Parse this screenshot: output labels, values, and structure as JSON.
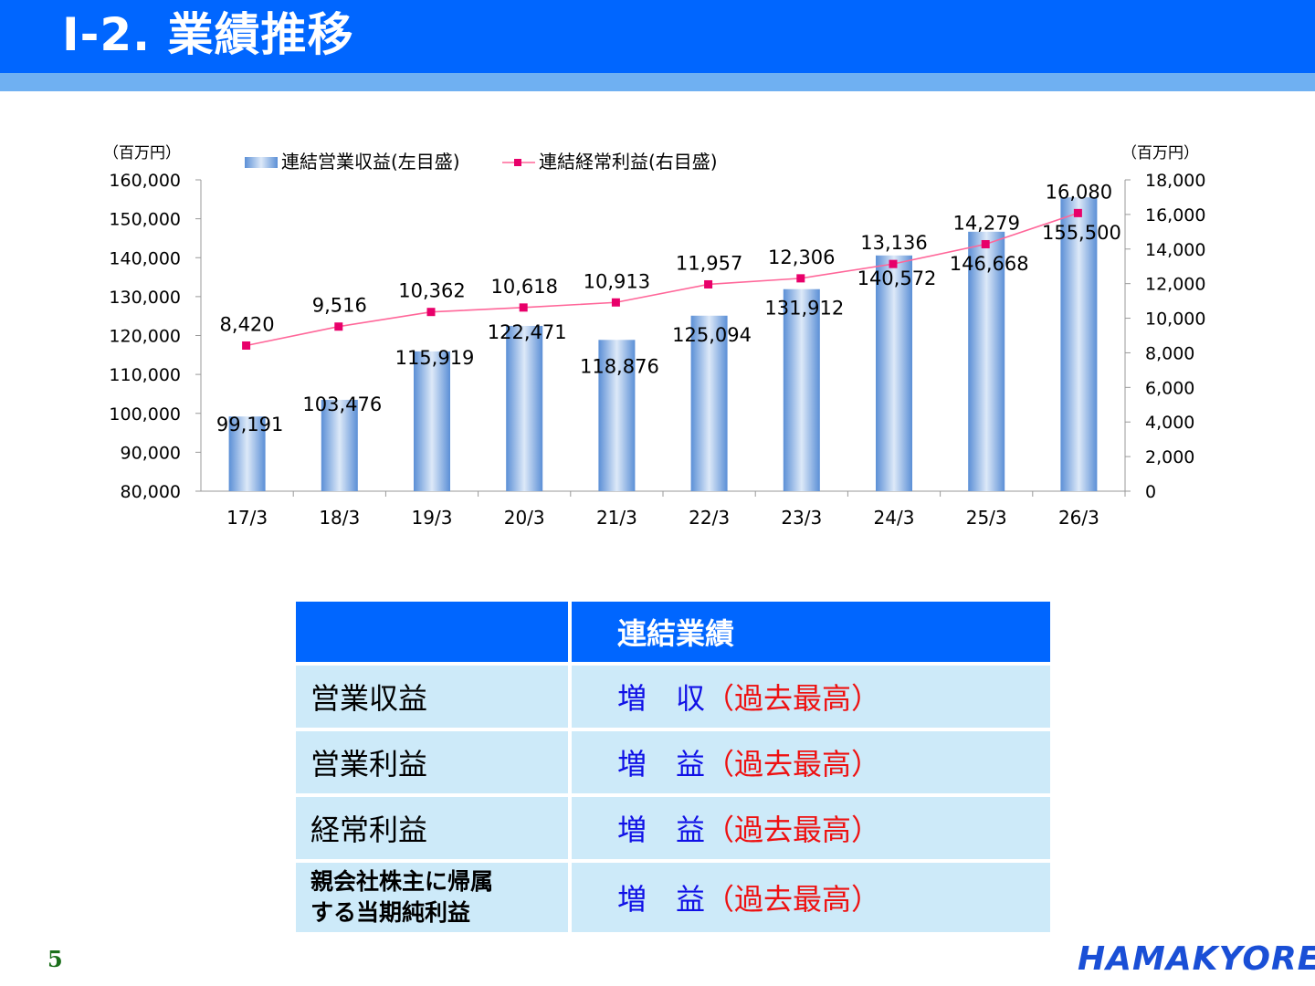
{
  "page": {
    "title": "Ⅰ-2. 業績推移",
    "page_number": "5",
    "logo_text": "HAMAKYOREX"
  },
  "colors": {
    "header": "#0066ff",
    "header_stripe": "#6fb0f2",
    "bar": "#6b9fe0",
    "line": "#ff6699",
    "marker": "#e8006a",
    "table_header": "#0066ff",
    "table_row": "#cdeaf9",
    "highlight_blue": "#1010e6",
    "highlight_red": "#ee1111"
  },
  "chart_data": {
    "type": "bar",
    "categories": [
      "17/3",
      "18/3",
      "19/3",
      "20/3",
      "21/3",
      "22/3",
      "23/3",
      "24/3",
      "25/3",
      "26/3"
    ],
    "series": [
      {
        "name": "連結営業収益(左目盛)",
        "type": "bar",
        "axis": "left",
        "values": [
          99191,
          103476,
          115919,
          122471,
          118876,
          125094,
          131912,
          140572,
          146668,
          155500
        ],
        "labels": [
          "99,191",
          "103,476",
          "115,919",
          "122,471",
          "118,876",
          "125,094",
          "131,912",
          "140,572",
          "146,668",
          "155,500"
        ]
      },
      {
        "name": "連結経常利益(右目盛)",
        "type": "line",
        "axis": "right",
        "values": [
          8420,
          9516,
          10362,
          10618,
          10913,
          11957,
          12306,
          13136,
          14279,
          16080
        ],
        "labels": [
          "8,420",
          "9,516",
          "10,362",
          "10,618",
          "10,913",
          "11,957",
          "12,306",
          "13,136",
          "14,279",
          "16,080"
        ]
      }
    ],
    "y_left": {
      "unit": "（百万円）",
      "ylim": [
        80000,
        160000
      ],
      "ticks": [
        "80,000",
        "90,000",
        "100,000",
        "110,000",
        "120,000",
        "130,000",
        "140,000",
        "150,000",
        "160,000"
      ]
    },
    "y_right": {
      "unit": "（百万円）",
      "ylim": [
        0,
        18000
      ],
      "ticks": [
        "0",
        "2,000",
        "4,000",
        "6,000",
        "8,000",
        "10,000",
        "12,000",
        "14,000",
        "16,000",
        "18,000"
      ]
    },
    "legend_position": "top",
    "grid": false
  },
  "table": {
    "header": [
      "",
      "連結業績"
    ],
    "rows": [
      {
        "label": "営業収益",
        "main": "増　収",
        "note": "（過去最高）"
      },
      {
        "label": "営業利益",
        "main": "増　益",
        "note": "（過去最高）"
      },
      {
        "label": "経常利益",
        "main": "増　益",
        "note": "（過去最高）"
      },
      {
        "label_line1": "親会社株主に帰属",
        "label_line2": "する当期純利益",
        "main": "増　益",
        "note": "（過去最高）"
      }
    ]
  }
}
